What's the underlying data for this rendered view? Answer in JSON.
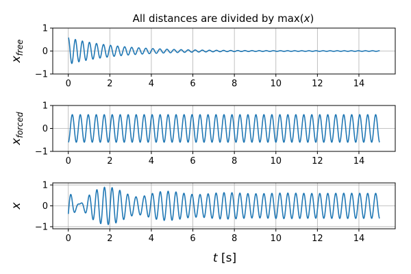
{
  "figure": {
    "title": "All distances are divided by max(x)",
    "xlabel": "t [s]",
    "line_color": "#1f77b4",
    "grid_color": "#b0b0b0"
  },
  "chart_data": [
    {
      "type": "line",
      "title": "All distances are divided by max(x)",
      "ylabel": "x_free",
      "xlim": [
        -0.75,
        15.75
      ],
      "ylim": [
        -1,
        1
      ],
      "xticks": [
        0,
        2,
        4,
        6,
        8,
        10,
        12,
        14
      ],
      "yticks": [
        -1,
        0,
        1
      ],
      "grid": true,
      "series": [
        {
          "t_range": [
            0,
            15
          ],
          "approx_shape": "decaying oscillation, ~3 Hz",
          "x": [
            0.0,
            0.08,
            0.16,
            0.24,
            0.33,
            0.5,
            0.66,
            0.83,
            1.0,
            1.5,
            2.0,
            3.0,
            4.0,
            6.0,
            8.0,
            10.0,
            15.0
          ],
          "y": [
            0.55,
            0.0,
            -0.55,
            -0.3,
            0.5,
            -0.45,
            0.4,
            -0.35,
            0.35,
            0.3,
            0.28,
            0.2,
            0.13,
            0.07,
            0.04,
            0.02,
            0.0
          ]
        }
      ]
    },
    {
      "type": "line",
      "ylabel": "x_forced",
      "xlim": [
        -0.75,
        15.75
      ],
      "ylim": [
        -1,
        1
      ],
      "xticks": [
        0,
        2,
        4,
        6,
        8,
        10,
        12,
        14
      ],
      "yticks": [
        -1,
        0,
        1
      ],
      "grid": true,
      "series": [
        {
          "t_range": [
            0,
            15
          ],
          "approx_shape": "constant-amplitude oscillation, amplitude ~0.6, ~2.6 Hz",
          "x": [
            0.0,
            0.1,
            0.2,
            0.3,
            0.4,
            15.0
          ],
          "y": [
            -0.6,
            0.0,
            0.6,
            0.0,
            -0.6,
            -0.6
          ]
        }
      ]
    },
    {
      "type": "line",
      "ylabel": "x",
      "xlim": [
        -0.75,
        15.75
      ],
      "ylim": [
        -1.1,
        1.1
      ],
      "xticks": [
        0,
        2,
        4,
        6,
        8,
        10,
        12,
        14
      ],
      "yticks": [
        -1,
        0,
        1
      ],
      "grid": true,
      "series": [
        {
          "t_range": [
            0,
            15
          ],
          "approx_shape": "sum of free and forced responses (beating), peaks ~1.0 near t=0.9",
          "x": [
            0.0,
            0.9,
            1.1,
            2.0,
            4.0,
            8.0,
            15.0
          ],
          "y": [
            0.0,
            1.0,
            -0.95,
            0.8,
            0.7,
            0.65,
            -0.6
          ]
        }
      ]
    }
  ]
}
